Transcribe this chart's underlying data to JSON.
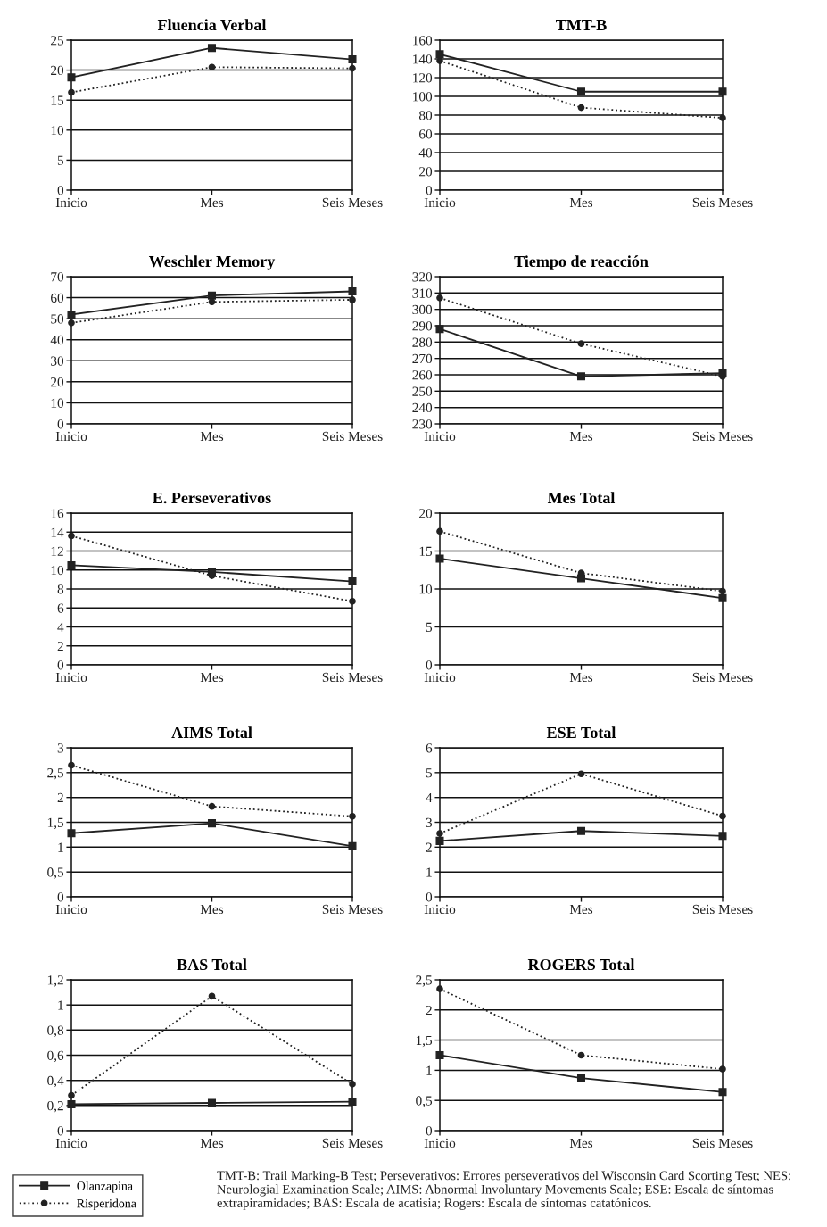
{
  "chart_data": [
    {
      "type": "line",
      "title": "Fluencia Verbal",
      "categories": [
        "Inicio",
        "Mes",
        "Seis Meses"
      ],
      "ylim": [
        0,
        25
      ],
      "yticks": [
        0,
        5,
        10,
        15,
        20,
        25
      ],
      "grid": "y",
      "legend": false,
      "series": [
        {
          "color": "#222222",
          "marker": "square",
          "line_style": "solid",
          "values": [
            18.8,
            23.7,
            21.8
          ]
        },
        {
          "color": "#222222",
          "marker": "circle",
          "line_style": "dotted",
          "values": [
            16.3,
            20.5,
            20.3
          ]
        }
      ]
    },
    {
      "type": "line",
      "title": "TMT-B",
      "categories": [
        "Inicio",
        "Mes",
        "Seis Meses"
      ],
      "ylim": [
        0,
        160
      ],
      "yticks": [
        0,
        20,
        40,
        60,
        80,
        100,
        120,
        140,
        160
      ],
      "grid": "y",
      "legend": false,
      "series": [
        {
          "color": "#222222",
          "marker": "square",
          "line_style": "solid",
          "values": [
            145,
            105,
            105
          ]
        },
        {
          "color": "#222222",
          "marker": "circle",
          "line_style": "dotted",
          "values": [
            138,
            88,
            77
          ]
        }
      ]
    },
    {
      "type": "line",
      "title": "Weschler Memory",
      "categories": [
        "Inicio",
        "Mes",
        "Seis Meses"
      ],
      "ylim": [
        0,
        70
      ],
      "yticks": [
        0,
        10,
        20,
        30,
        40,
        50,
        60,
        70
      ],
      "grid": "y",
      "legend": false,
      "series": [
        {
          "color": "#222222",
          "marker": "square",
          "line_style": "solid",
          "values": [
            52,
            61,
            63
          ]
        },
        {
          "color": "#222222",
          "marker": "circle",
          "line_style": "dotted",
          "values": [
            48,
            58,
            59
          ]
        }
      ]
    },
    {
      "type": "line",
      "title": "Tiempo de reacción",
      "categories": [
        "Inicio",
        "Mes",
        "Seis Meses"
      ],
      "ylim": [
        230,
        320
      ],
      "yticks": [
        230,
        240,
        250,
        260,
        270,
        280,
        290,
        300,
        310,
        320
      ],
      "grid": "y",
      "legend": false,
      "series": [
        {
          "color": "#222222",
          "marker": "square",
          "line_style": "solid",
          "values": [
            288,
            259,
            261
          ]
        },
        {
          "color": "#222222",
          "marker": "circle",
          "line_style": "dotted",
          "values": [
            307,
            279,
            259
          ]
        }
      ]
    },
    {
      "type": "line",
      "title": "E. Perseverativos",
      "categories": [
        "Inicio",
        "Mes",
        "Seis Meses"
      ],
      "ylim": [
        0,
        16
      ],
      "yticks": [
        0,
        2,
        4,
        6,
        8,
        10,
        12,
        14,
        16
      ],
      "grid": "y",
      "legend": false,
      "series": [
        {
          "color": "#222222",
          "marker": "square",
          "line_style": "solid",
          "values": [
            10.5,
            9.8,
            8.8
          ]
        },
        {
          "color": "#222222",
          "marker": "circle",
          "line_style": "dotted",
          "values": [
            13.6,
            9.4,
            6.7
          ]
        }
      ]
    },
    {
      "type": "line",
      "title": "Mes Total",
      "categories": [
        "Inicio",
        "Mes",
        "Seis Meses"
      ],
      "ylim": [
        0,
        20
      ],
      "yticks": [
        0,
        5,
        10,
        15,
        20
      ],
      "grid": "y",
      "legend": false,
      "series": [
        {
          "color": "#222222",
          "marker": "square",
          "line_style": "solid",
          "values": [
            14,
            11.4,
            8.8
          ]
        },
        {
          "color": "#222222",
          "marker": "circle",
          "line_style": "dotted",
          "values": [
            17.6,
            12.1,
            9.7
          ]
        }
      ]
    },
    {
      "type": "line",
      "title": "AIMS Total",
      "categories": [
        "Inicio",
        "Mes",
        "Seis Meses"
      ],
      "ylim": [
        0,
        3
      ],
      "yticks": [
        0,
        {
          "value": 0.5,
          "label": "0,5"
        },
        1,
        {
          "value": 1.5,
          "label": "1,5"
        },
        2,
        {
          "value": 2.5,
          "label": "2,5"
        },
        3
      ],
      "grid": "y",
      "legend": false,
      "series": [
        {
          "color": "#222222",
          "marker": "square",
          "line_style": "solid",
          "values": [
            1.28,
            1.48,
            1.02
          ]
        },
        {
          "color": "#222222",
          "marker": "circle",
          "line_style": "dotted",
          "values": [
            2.65,
            1.82,
            1.62
          ]
        }
      ]
    },
    {
      "type": "line",
      "title": "ESE Total",
      "categories": [
        "Inicio",
        "Mes",
        "Seis Meses"
      ],
      "ylim": [
        0,
        6
      ],
      "yticks": [
        0,
        1,
        2,
        3,
        4,
        5,
        6
      ],
      "grid": "y",
      "legend": false,
      "series": [
        {
          "color": "#222222",
          "marker": "square",
          "line_style": "solid",
          "values": [
            2.25,
            2.65,
            2.45
          ]
        },
        {
          "color": "#222222",
          "marker": "circle",
          "line_style": "dotted",
          "values": [
            2.55,
            4.95,
            3.25
          ]
        }
      ]
    },
    {
      "type": "line",
      "title": "BAS Total",
      "categories": [
        "Inicio",
        "Mes",
        "Seis Meses"
      ],
      "ylim": [
        0,
        1.2
      ],
      "yticks": [
        0,
        {
          "value": 0.2,
          "label": "0,2"
        },
        {
          "value": 0.4,
          "label": "0,4"
        },
        {
          "value": 0.6,
          "label": "0,6"
        },
        {
          "value": 0.8,
          "label": "0,8"
        },
        1,
        {
          "value": 1.2,
          "label": "1,2"
        }
      ],
      "grid": "y",
      "legend": false,
      "series": [
        {
          "color": "#222222",
          "marker": "square",
          "line_style": "solid",
          "values": [
            0.21,
            0.22,
            0.23
          ]
        },
        {
          "color": "#222222",
          "marker": "circle",
          "line_style": "dotted",
          "values": [
            0.28,
            1.07,
            0.37
          ]
        }
      ]
    },
    {
      "type": "line",
      "title": "ROGERS Total",
      "categories": [
        "Inicio",
        "Mes",
        "Seis Meses"
      ],
      "ylim": [
        0,
        2.5
      ],
      "yticks": [
        0,
        {
          "value": 0.5,
          "label": "0,5"
        },
        1,
        {
          "value": 1.5,
          "label": "1,5"
        },
        2,
        {
          "value": 2.5,
          "label": "2,5"
        }
      ],
      "grid": "y",
      "legend": "bottom left",
      "annotations": [
        "TMT-B: Trail Marking-B Test; Perseverativos: Errores perseverativos del Wisconsin Card Scorting Test; NES: Neurologial Examination Scale; AIMS: Abnormal Involuntary Movements Scale; ESE: Escala de síntomas extrapiramidades; BAS: Escala de acatisia; Rogers: Escala de síntomas catatónicos."
      ],
      "series": [
        {
          "name": "Olanzapina",
          "color": "#222222",
          "marker": "square",
          "line_style": "solid",
          "values": [
            1.25,
            0.87,
            0.64
          ]
        },
        {
          "name": "Risperidona",
          "color": "#222222",
          "marker": "circle",
          "line_style": "dotted",
          "values": [
            2.35,
            1.25,
            1.02
          ]
        }
      ]
    }
  ]
}
